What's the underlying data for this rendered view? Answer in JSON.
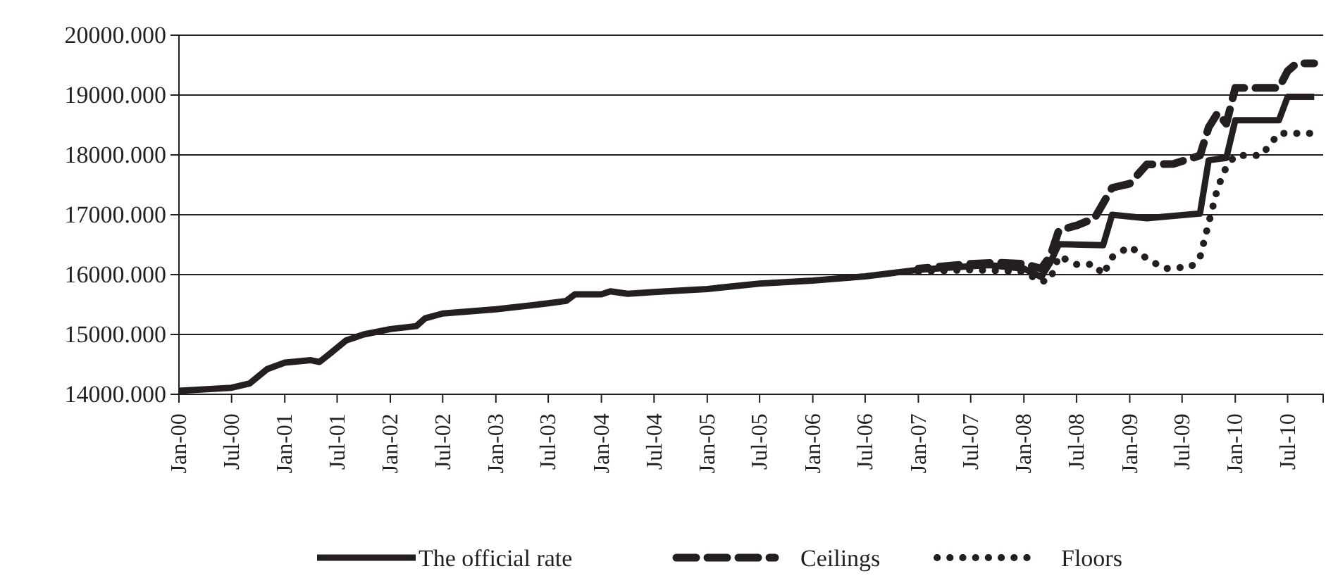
{
  "chart_data": {
    "type": "line",
    "grid": "y",
    "legend": "bottom",
    "xlim": [
      "2000-01",
      "2010-11"
    ],
    "ylim": [
      14000,
      20000
    ],
    "yticks": [
      {
        "value": 14000,
        "label": "14000.000"
      },
      {
        "value": 15000,
        "label": "15000.000"
      },
      {
        "value": 16000,
        "label": "16000.000"
      },
      {
        "value": 17000,
        "label": "17000.000"
      },
      {
        "value": 18000,
        "label": "18000.000"
      },
      {
        "value": 19000,
        "label": "19000.000"
      },
      {
        "value": 20000,
        "label": "20000.000"
      }
    ],
    "xticks": [
      {
        "value": "2000-01",
        "label": "Jan-00"
      },
      {
        "value": "2000-07",
        "label": "Jul-00"
      },
      {
        "value": "2001-01",
        "label": "Jan-01"
      },
      {
        "value": "2001-07",
        "label": "Jul-01"
      },
      {
        "value": "2002-01",
        "label": "Jan-02"
      },
      {
        "value": "2002-07",
        "label": "Jul-02"
      },
      {
        "value": "2003-01",
        "label": "Jan-03"
      },
      {
        "value": "2003-07",
        "label": "Jul-03"
      },
      {
        "value": "2004-01",
        "label": "Jan-04"
      },
      {
        "value": "2004-07",
        "label": "Jul-04"
      },
      {
        "value": "2005-01",
        "label": "Jan-05"
      },
      {
        "value": "2005-07",
        "label": "Jul-05"
      },
      {
        "value": "2006-01",
        "label": "Jan-06"
      },
      {
        "value": "2006-07",
        "label": "Jul-06"
      },
      {
        "value": "2007-01",
        "label": "Jan-07"
      },
      {
        "value": "2007-07",
        "label": "Jul-07"
      },
      {
        "value": "2008-01",
        "label": "Jan-08"
      },
      {
        "value": "2008-07",
        "label": "Jul-08"
      },
      {
        "value": "2009-01",
        "label": "Jan-09"
      },
      {
        "value": "2009-07",
        "label": "Jul-09"
      },
      {
        "value": "2010-01",
        "label": "Jan-10"
      },
      {
        "value": "2010-07",
        "label": "Jul-10"
      }
    ],
    "series": [
      {
        "name": "The official rate",
        "color": "#231f20",
        "line_style": "solid",
        "x": [
          "2000-01",
          "2000-07",
          "2000-09",
          "2000-11",
          "2001-01",
          "2001-04",
          "2001-05",
          "2001-06",
          "2001-08",
          "2001-10",
          "2002-01",
          "2002-04",
          "2002-05",
          "2002-07",
          "2003-01",
          "2003-07",
          "2003-09",
          "2003-10",
          "2004-01",
          "2004-02",
          "2004-04",
          "2004-07",
          "2005-01",
          "2005-07",
          "2006-01",
          "2006-07",
          "2007-01",
          "2007-05",
          "2007-09",
          "2008-01",
          "2008-03",
          "2008-04",
          "2008-05",
          "2008-10",
          "2008-11",
          "2009-03",
          "2009-09",
          "2009-10",
          "2009-12",
          "2010-01",
          "2010-06",
          "2010-07",
          "2010-10"
        ],
        "values": [
          14060,
          14110,
          14180,
          14420,
          14530,
          14570,
          14540,
          14660,
          14900,
          15000,
          15090,
          15140,
          15270,
          15350,
          15420,
          15520,
          15560,
          15670,
          15670,
          15720,
          15680,
          15710,
          15760,
          15850,
          15900,
          15970,
          16080,
          16120,
          16160,
          16100,
          15960,
          16200,
          16510,
          16490,
          17000,
          16940,
          17020,
          17910,
          17950,
          18580,
          18580,
          18970,
          18970
        ]
      },
      {
        "name": "Ceilings",
        "color": "#231f20",
        "line_style": "dashed",
        "x": [
          "2007-01",
          "2007-07",
          "2007-10",
          "2008-01",
          "2008-03",
          "2008-04",
          "2008-05",
          "2008-07",
          "2008-09",
          "2008-11",
          "2009-01",
          "2009-03",
          "2009-06",
          "2009-09",
          "2009-10",
          "2009-11",
          "2009-12",
          "2010-01",
          "2010-03",
          "2010-06",
          "2010-07",
          "2010-08",
          "2010-10"
        ],
        "values": [
          16100,
          16180,
          16200,
          16180,
          16100,
          16310,
          16740,
          16820,
          16940,
          17450,
          17520,
          17840,
          17850,
          17990,
          18460,
          18700,
          18520,
          19120,
          19120,
          19120,
          19400,
          19530,
          19530
        ]
      },
      {
        "name": "Floors",
        "color": "#231f20",
        "line_style": "dotted",
        "x": [
          "2007-01",
          "2007-07",
          "2008-01",
          "2008-03",
          "2008-04",
          "2008-05",
          "2008-07",
          "2008-09",
          "2008-10",
          "2008-11",
          "2009-01",
          "2009-03",
          "2009-05",
          "2009-08",
          "2009-09",
          "2009-10",
          "2009-11",
          "2009-12",
          "2010-01",
          "2010-04",
          "2010-06",
          "2010-10"
        ],
        "values": [
          16050,
          16080,
          16050,
          15880,
          15920,
          16310,
          16170,
          16170,
          16000,
          16290,
          16470,
          16270,
          16100,
          16130,
          16290,
          16860,
          17450,
          17800,
          17990,
          17990,
          18360,
          18360
        ]
      }
    ]
  }
}
